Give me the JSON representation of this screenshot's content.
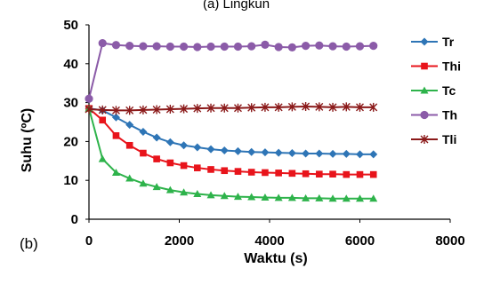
{
  "chart_data": {
    "type": "line",
    "title_fragment": "(a) Lingkun",
    "panel_label": "(b)",
    "xlabel": "Waktu (s)",
    "ylabel": "Suhu (ºC)",
    "xlim": [
      0,
      8000
    ],
    "ylim": [
      0,
      50
    ],
    "xticks": [
      0,
      2000,
      4000,
      6000,
      8000
    ],
    "yticks": [
      0,
      10,
      20,
      30,
      40,
      50
    ],
    "grid": false,
    "legend_position": "right",
    "x": [
      0,
      300,
      600,
      900,
      1200,
      1500,
      1800,
      2100,
      2400,
      2700,
      3000,
      3300,
      3600,
      3900,
      4200,
      4500,
      4800,
      5100,
      5400,
      5700,
      6000,
      6300
    ],
    "series": [
      {
        "name": "Tr",
        "color": "#2e75b6",
        "marker": "diamond",
        "values": [
          28.5,
          28,
          26.2,
          24.3,
          22.5,
          21,
          19.8,
          19,
          18.5,
          18,
          17.7,
          17.5,
          17.3,
          17.2,
          17.1,
          17.0,
          16.9,
          16.9,
          16.8,
          16.8,
          16.7,
          16.7
        ]
      },
      {
        "name": "Thi",
        "color": "#e8141b",
        "marker": "square",
        "values": [
          28.5,
          25.5,
          21.5,
          19,
          17,
          15.5,
          14.5,
          13.8,
          13.2,
          12.8,
          12.5,
          12.3,
          12.1,
          12,
          11.9,
          11.8,
          11.7,
          11.6,
          11.6,
          11.5,
          11.5,
          11.5
        ]
      },
      {
        "name": "Tc",
        "color": "#2eb34b",
        "marker": "triangle",
        "values": [
          28.5,
          15.5,
          12,
          10.5,
          9.2,
          8.3,
          7.5,
          6.9,
          6.5,
          6.2,
          6.0,
          5.8,
          5.7,
          5.6,
          5.5,
          5.5,
          5.4,
          5.4,
          5.3,
          5.3,
          5.3,
          5.3
        ]
      },
      {
        "name": "Th",
        "color": "#8b5ba8",
        "marker": "circle",
        "values": [
          31,
          45.3,
          44.8,
          44.6,
          44.5,
          44.5,
          44.4,
          44.4,
          44.3,
          44.4,
          44.4,
          44.4,
          44.5,
          44.9,
          44.3,
          44.2,
          44.6,
          44.7,
          44.5,
          44.4,
          44.5,
          44.6
        ]
      },
      {
        "name": "Tli",
        "color": "#8b1a1a",
        "marker": "star",
        "values": [
          28.3,
          28.1,
          28.0,
          28.0,
          28.1,
          28.2,
          28.3,
          28.4,
          28.5,
          28.6,
          28.6,
          28.6,
          28.7,
          28.8,
          28.8,
          28.9,
          29.0,
          28.9,
          28.8,
          28.9,
          28.8,
          28.8
        ]
      }
    ]
  }
}
